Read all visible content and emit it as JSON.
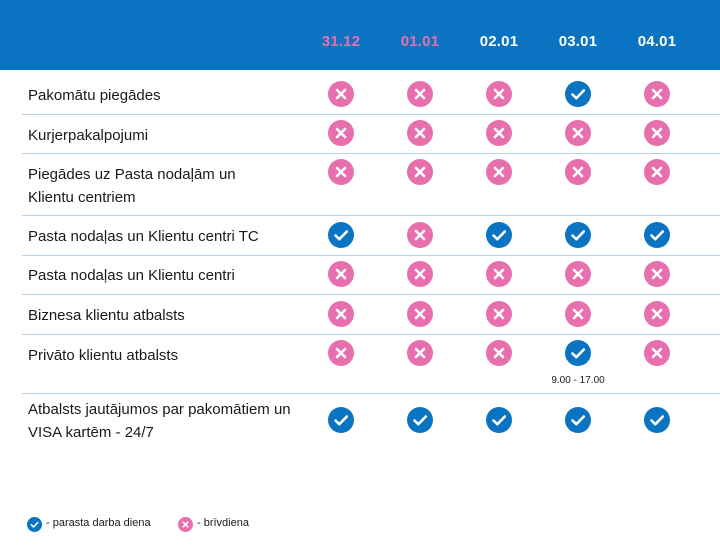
{
  "header": {
    "dates": [
      {
        "label": "31.12",
        "holiday": true
      },
      {
        "label": "01.01",
        "holiday": true
      },
      {
        "label": "02.01",
        "holiday": false
      },
      {
        "label": "03.01",
        "holiday": false
      },
      {
        "label": "04.01",
        "holiday": false
      }
    ]
  },
  "rows": [
    {
      "label": "Pakomātu piegādes",
      "status": [
        "off",
        "off",
        "off",
        "work",
        "off"
      ]
    },
    {
      "label": "Kurjerpakalpojumi",
      "status": [
        "off",
        "off",
        "off",
        "off",
        "off"
      ]
    },
    {
      "label": "Piegādes uz Pasta nodaļām un Klientu centriem",
      "status": [
        "off",
        "off",
        "off",
        "off",
        "off"
      ]
    },
    {
      "label": "Pasta nodaļas un Klientu centri TC",
      "status": [
        "work",
        "off",
        "work",
        "work",
        "work"
      ]
    },
    {
      "label": "Pasta nodaļas un Klientu centri",
      "status": [
        "off",
        "off",
        "off",
        "off",
        "off"
      ]
    },
    {
      "label": "Biznesa klientu atbalsts",
      "status": [
        "off",
        "off",
        "off",
        "off",
        "off"
      ]
    },
    {
      "label": "Privāto klientu atbalsts",
      "status": [
        "off",
        "off",
        "off",
        "work",
        "off"
      ],
      "notes": [
        "",
        "",
        "",
        "9.00 - 17.00",
        ""
      ]
    },
    {
      "label": "Atbalsts jautājumos par pakomātiem un VISA kartēm - 24/7",
      "status": [
        "work",
        "work",
        "work",
        "work",
        "work"
      ]
    }
  ],
  "legend": {
    "work_label": "- parasta darba diena",
    "off_label": "- brīvdiena"
  },
  "colors": {
    "header_bg": "#0a73c2",
    "holiday_text": "#e86fae",
    "check_bg": "#0a73c2",
    "cross_bg": "#e86fae"
  },
  "icons": {
    "work": "check-circle-icon",
    "off": "cross-circle-icon"
  }
}
